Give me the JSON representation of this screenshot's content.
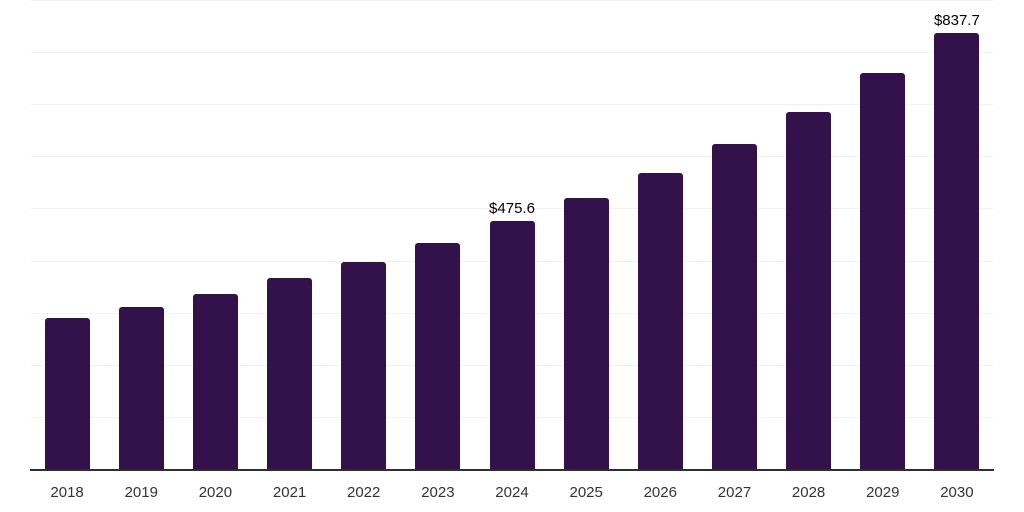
{
  "chart_data": {
    "type": "bar",
    "title": "",
    "xlabel": "",
    "ylabel": "",
    "categories": [
      "2018",
      "2019",
      "2020",
      "2021",
      "2022",
      "2023",
      "2024",
      "2025",
      "2026",
      "2027",
      "2028",
      "2029",
      "2030"
    ],
    "values": [
      290,
      311,
      336,
      367,
      397,
      434,
      475.6,
      520,
      568,
      624,
      685,
      760,
      837.7
    ],
    "data_labels": [
      {
        "category": "2024",
        "text": "$475.6"
      },
      {
        "category": "2030",
        "text": "$837.7"
      }
    ],
    "ylim": [
      0,
      900
    ],
    "grid_step": 100,
    "grid": true,
    "legend_position": "none",
    "colors": {
      "bar": "#33124b",
      "gridline": "#f2f2f2",
      "axis_line": "#2e2e2e",
      "tick_label": "#333333",
      "data_label": "#000000",
      "background": "#ffffff"
    }
  }
}
